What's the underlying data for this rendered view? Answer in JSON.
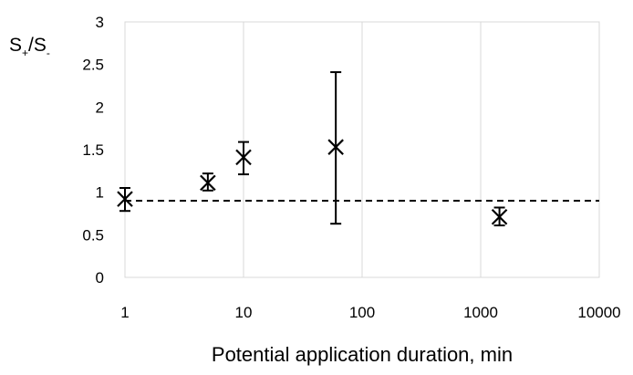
{
  "chart_data": {
    "type": "scatter",
    "x_scale": "log",
    "xlim": [
      1,
      10000
    ],
    "ylim": [
      0,
      3
    ],
    "x_ticks": [
      "1",
      "10",
      "100",
      "1000",
      "10000"
    ],
    "y_ticks": [
      "0",
      "0.5",
      "1",
      "1.5",
      "2",
      "2.5",
      "3"
    ],
    "xlabel": "Potential application duration, min",
    "ylabel": {
      "s": "S",
      "plus": "+",
      "slash": "/S",
      "minus": "-"
    },
    "grid": "vertical",
    "reference_line": {
      "y": 0.9,
      "style": "dashed"
    },
    "marker": "x",
    "points": [
      {
        "x": 1,
        "y": 0.92,
        "y_low": 0.78,
        "y_high": 1.05
      },
      {
        "x": 5,
        "y": 1.11,
        "y_low": 1.02,
        "y_high": 1.22
      },
      {
        "x": 10,
        "y": 1.41,
        "y_low": 1.21,
        "y_high": 1.59
      },
      {
        "x": 60,
        "y": 1.53,
        "y_low": 0.63,
        "y_high": 2.41
      },
      {
        "x": 1440,
        "y": 0.71,
        "y_low": 0.61,
        "y_high": 0.82
      }
    ]
  }
}
